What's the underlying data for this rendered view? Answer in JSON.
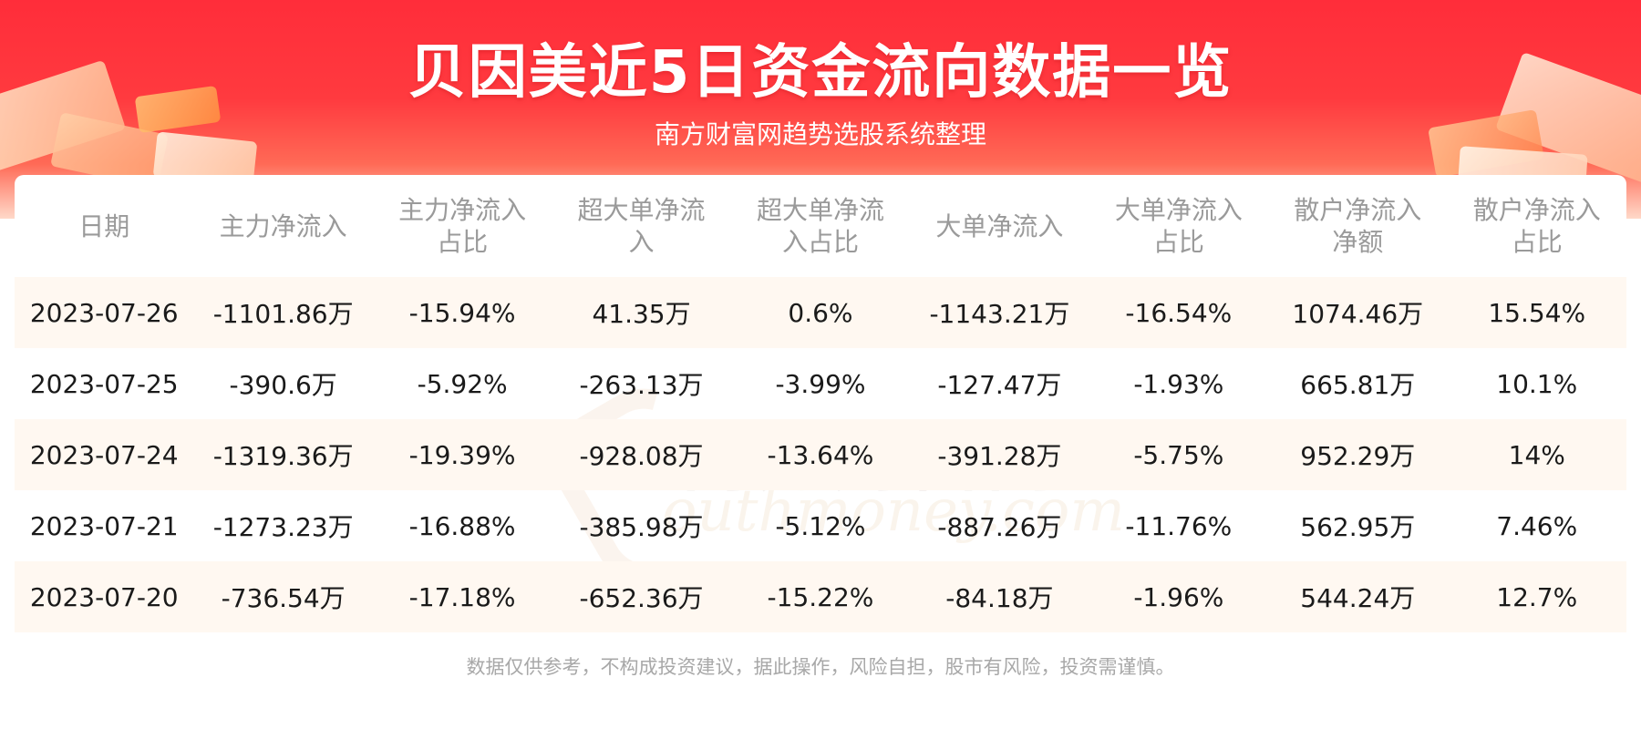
{
  "header": {
    "title": "贝因美近5日资金流向数据一览",
    "subtitle": "南方财富网趋势选股系统整理"
  },
  "table": {
    "columns": [
      "日期",
      "主力净流入",
      "主力净流入\n占比",
      "超大单净流\n入",
      "超大单净流\n入占比",
      "大单净流入",
      "大单净流入\n占比",
      "散户净流入\n净额",
      "散户净流入\n占比"
    ],
    "rows": [
      [
        "2023-07-26",
        "-1101.86万",
        "-15.94%",
        "41.35万",
        "0.6%",
        "-1143.21万",
        "-16.54%",
        "1074.46万",
        "15.54%"
      ],
      [
        "2023-07-25",
        "-390.6万",
        "-5.92%",
        "-263.13万",
        "-3.99%",
        "-127.47万",
        "-1.93%",
        "665.81万",
        "10.1%"
      ],
      [
        "2023-07-24",
        "-1319.36万",
        "-19.39%",
        "-928.08万",
        "-13.64%",
        "-391.28万",
        "-5.75%",
        "952.29万",
        "14%"
      ],
      [
        "2023-07-21",
        "-1273.23万",
        "-16.88%",
        "-385.98万",
        "-5.12%",
        "-887.26万",
        "-11.76%",
        "562.95万",
        "7.46%"
      ],
      [
        "2023-07-20",
        "-736.54万",
        "-17.18%",
        "-652.36万",
        "-15.22%",
        "-84.18万",
        "-1.96%",
        "544.24万",
        "12.7%"
      ]
    ]
  },
  "watermark": {
    "cn": "南方财富网",
    "en": "outhmoney.com"
  },
  "footer": {
    "disclaimer": "数据仅供参考，不构成投资建议，据此操作，风险自担，股市有风险，投资需谨慎。"
  },
  "colors": {
    "banner_red": "#ff2d3a",
    "row_alt_bg": "#fff8f1",
    "header_text": "#9a9a9a",
    "footer_text": "#a8a8a8"
  }
}
